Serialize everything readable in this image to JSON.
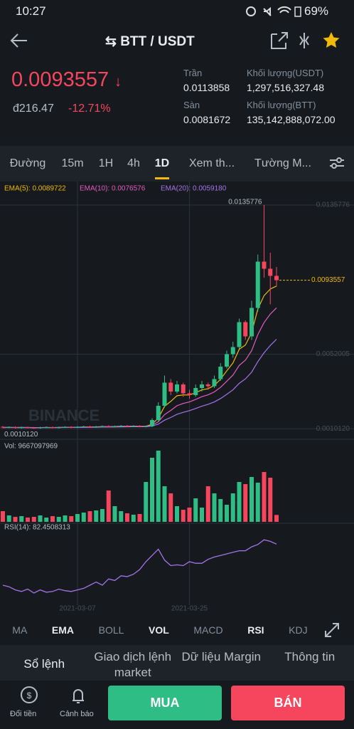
{
  "status": {
    "time": "10:27",
    "battery": "69%"
  },
  "header": {
    "pair": "BTT / USDT"
  },
  "price": {
    "last": "0.0093557",
    "fiat": "đ216.47",
    "change": "-12.71%"
  },
  "stats": [
    {
      "label": "Trần",
      "value": "0.0113858"
    },
    {
      "label": "Khối lượng(USDT)",
      "value": "1,297,516,327.48"
    },
    {
      "label": "Sàn",
      "value": "0.0081672"
    },
    {
      "label": "Khối lượng(BTT)",
      "value": "135,142,888,072.00"
    }
  ],
  "intervals": [
    "Đường",
    "15m",
    "1H",
    "4h",
    "1D",
    "Xem th...",
    "Tường M..."
  ],
  "active_interval": "1D",
  "chart_data": {
    "type": "candlestick",
    "watermark": "BINANCE",
    "ema_labels": [
      "EMA(5): 0.0089722",
      "EMA(10): 0.0076576",
      "EMA(20): 0.0059180"
    ],
    "ema_colors": [
      "#f0b90b",
      "#e45cc1",
      "#a374e8"
    ],
    "up_color": "#2ebd85",
    "down_color": "#f6465d",
    "ylim": [
      0.0005,
      0.0145
    ],
    "yticks": [
      0.0135776,
      0.0052005,
      {
        "value": 0.001012,
        "label": "0.0010120"
      }
    ],
    "high_label": "0.0135776",
    "low_label": "0.0010120",
    "last_label": "0.0093557",
    "categories": [
      null,
      null,
      null,
      null,
      null,
      null,
      null,
      null,
      null,
      null,
      null,
      null,
      "2021-03-07",
      null,
      null,
      null,
      null,
      null,
      null,
      null,
      null,
      null,
      null,
      null,
      null,
      null,
      null,
      null,
      null,
      null,
      "2021-03-25",
      null,
      null,
      null,
      null,
      null,
      null,
      null,
      null,
      null,
      null,
      null,
      null,
      null,
      null
    ],
    "open": [
      0.00112,
      0.00108,
      0.0011,
      0.00106,
      0.00109,
      0.00107,
      0.00105,
      0.00108,
      0.0011,
      0.00107,
      0.00109,
      0.00111,
      0.00108,
      0.00112,
      0.00114,
      0.0011,
      0.00113,
      0.00116,
      0.00112,
      0.00115,
      0.00118,
      0.00114,
      0.00117,
      0.00113,
      0.00115,
      0.0015,
      0.0023,
      0.0036,
      0.0031,
      0.0035,
      0.003,
      0.0029,
      0.0033,
      0.0035,
      0.0034,
      0.0038,
      0.0045,
      0.0052,
      0.0056,
      0.007,
      0.0062,
      0.0078,
      0.0104,
      0.01,
      0.0096
    ],
    "close": [
      0.00108,
      0.0011,
      0.00106,
      0.00109,
      0.00107,
      0.00105,
      0.00108,
      0.0011,
      0.00107,
      0.00109,
      0.00111,
      0.00108,
      0.00112,
      0.00114,
      0.0011,
      0.00113,
      0.00116,
      0.00112,
      0.00115,
      0.00118,
      0.00114,
      0.00117,
      0.00113,
      0.00115,
      0.0015,
      0.0023,
      0.0036,
      0.0031,
      0.0035,
      0.003,
      0.0029,
      0.0033,
      0.0035,
      0.0034,
      0.0038,
      0.0045,
      0.0052,
      0.0056,
      0.007,
      0.0062,
      0.0078,
      0.0104,
      0.01,
      0.0096,
      0.0093557
    ],
    "high": [
      0.00116,
      0.00114,
      0.00114,
      0.00113,
      0.00113,
      0.00111,
      0.00112,
      0.00114,
      0.00114,
      0.00113,
      0.00115,
      0.00115,
      0.00116,
      0.00118,
      0.00118,
      0.00117,
      0.0012,
      0.0012,
      0.00119,
      0.00122,
      0.00122,
      0.00121,
      0.00121,
      0.00119,
      0.0016,
      0.0025,
      0.004,
      0.0038,
      0.0037,
      0.0036,
      0.0032,
      0.0035,
      0.0037,
      0.0036,
      0.004,
      0.0047,
      0.0054,
      0.0059,
      0.0072,
      0.0071,
      0.0082,
      0.0108,
      0.0135776,
      0.0109,
      0.0101
    ],
    "low": [
      0.00104,
      0.00104,
      0.00102,
      0.00102,
      0.00103,
      0.00101,
      0.00101,
      0.00104,
      0.00103,
      0.00103,
      0.00105,
      0.00104,
      0.00104,
      0.00108,
      0.00106,
      0.00106,
      0.00109,
      0.00108,
      0.00108,
      0.00111,
      0.0011,
      0.0011,
      0.00109,
      0.00109,
      0.0011,
      0.0014,
      0.0022,
      0.0029,
      0.003,
      0.0028,
      0.0027,
      0.0028,
      0.0031,
      0.0032,
      0.0033,
      0.0037,
      0.0044,
      0.005,
      0.0055,
      0.006,
      0.006,
      0.0076,
      0.0095,
      0.008,
      0.009
    ],
    "volume": {
      "label": "Vol: 9667097969",
      "ylim": [
        0,
        110000000000
      ],
      "values": [
        15000000000,
        9000000000,
        7000000000,
        8000000000,
        6000000000,
        7000000000,
        9000000000,
        6000000000,
        8000000000,
        7000000000,
        9000000000,
        8000000000,
        11000000000,
        13000000000,
        15000000000,
        16000000000,
        18000000000,
        44000000000,
        22000000000,
        15000000000,
        12000000000,
        10000000000,
        11000000000,
        56000000000,
        90000000000,
        100000000000,
        50000000000,
        40000000000,
        22000000000,
        17000000000,
        20000000000,
        33000000000,
        20000000000,
        50000000000,
        40000000000,
        32000000000,
        24000000000,
        40000000000,
        56000000000,
        53000000000,
        63000000000,
        55000000000,
        70000000000,
        62000000000,
        9667097969
      ]
    },
    "rsi": {
      "label": "RSI(14): 82.4508313",
      "color": "#a374e8",
      "ylim": [
        0,
        100
      ],
      "values": [
        30,
        28,
        24,
        22,
        25,
        20,
        24,
        21,
        22,
        25,
        23,
        22,
        24,
        26,
        30,
        34,
        30,
        38,
        36,
        42,
        41,
        44,
        50,
        60,
        68,
        76,
        62,
        55,
        56,
        55,
        60,
        58,
        58,
        63,
        66,
        68,
        70,
        72,
        74,
        74,
        79,
        82,
        88,
        86,
        82.4508313
      ]
    }
  },
  "indicators": [
    "MA",
    "EMA",
    "BOLL",
    "VOL",
    "MACD",
    "RSI",
    "KDJ"
  ],
  "bold_indicators": [
    "EMA",
    "VOL",
    "RSI"
  ],
  "bottom_tabs": [
    "Sổ lệnh",
    "Giao dịch lệnh market",
    "Dữ liệu Margin",
    "Thông tin"
  ],
  "nav": [
    "Đổi tiền",
    "Cảnh báo"
  ],
  "buttons": {
    "buy": "MUA",
    "sell": "BÁN"
  }
}
